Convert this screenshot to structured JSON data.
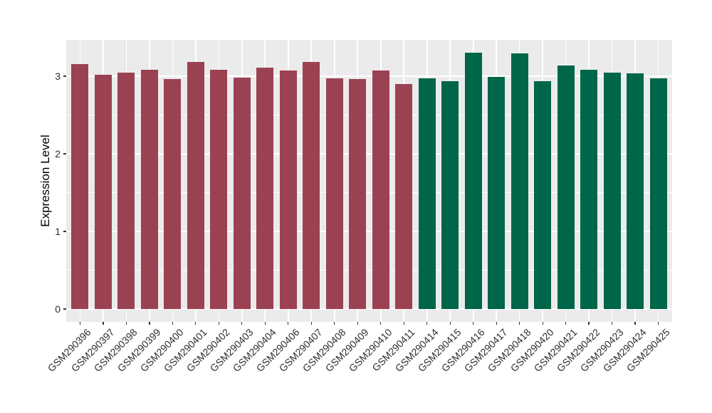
{
  "chart_data": {
    "type": "bar",
    "title": "",
    "xlabel": "",
    "ylabel": "Expression Level",
    "categories": [
      "GSM290396",
      "GSM290397",
      "GSM290398",
      "GSM290399",
      "GSM290400",
      "GSM290401",
      "GSM290402",
      "GSM290403",
      "GSM290404",
      "GSM290406",
      "GSM290407",
      "GSM290408",
      "GSM290409",
      "GSM290410",
      "GSM290411",
      "GSM290414",
      "GSM290415",
      "GSM290416",
      "GSM290417",
      "GSM290418",
      "GSM290420",
      "GSM290421",
      "GSM290422",
      "GSM290423",
      "GSM290424",
      "GSM290425"
    ],
    "values": [
      3.16,
      3.02,
      3.05,
      3.08,
      2.96,
      3.18,
      3.08,
      2.98,
      3.11,
      3.07,
      3.18,
      2.97,
      2.96,
      3.07,
      2.9,
      2.97,
      2.94,
      3.3,
      2.99,
      3.29,
      2.94,
      3.14,
      3.08,
      3.05,
      3.04,
      2.97
    ],
    "groups": [
      {
        "name": "maroon-group",
        "color": "#9B4252",
        "count": 15
      },
      {
        "name": "green-group",
        "color": "#006649",
        "count": 11
      }
    ],
    "yticks": [
      "0",
      "1",
      "2",
      "3"
    ],
    "ylim": [
      -0.165,
      3.465
    ],
    "legend": "none",
    "style": {
      "panel_background": "#EBEBEB",
      "gridline_color": "#FFFFFF",
      "tick_color": "#333333",
      "tick_label_color": "#2e2e2e",
      "grid": "major and minor horizontal, vertical at bar centers"
    }
  }
}
